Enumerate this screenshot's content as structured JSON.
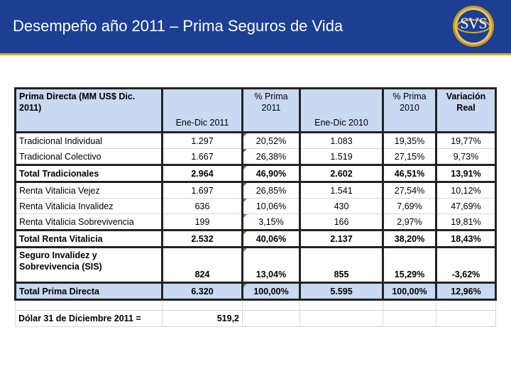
{
  "header": {
    "title": "Desempeño año 2011 – Prima Seguros de Vida",
    "logo_text": "SVS",
    "colors": {
      "header_bg": "#1c3f93",
      "accent_line": "#d8aa2a",
      "table_header_bg": "#c9d9f1"
    }
  },
  "table": {
    "headers": {
      "label": "Prima Directa (MM US$ Dic. 2011)",
      "c1": "Ene-Dic 2011",
      "c2": "% Prima 2011",
      "c3": "Ene-Dic 2010",
      "c4": "% Prima 2010",
      "c5": "Variación Real"
    },
    "rows": [
      {
        "label": "Tradicional Individual",
        "v1": "1.297",
        "v2": "20,52%",
        "v3": "1.083",
        "v4": "19,35%",
        "v5": "19,77%"
      },
      {
        "label": "Tradicional Colectivo",
        "v1": "1.667",
        "v2": "26,38%",
        "v3": "1.519",
        "v4": "27,15%",
        "v5": "9,73%"
      },
      {
        "label": "Total Tradicionales",
        "v1": "2.964",
        "v2": "46,90%",
        "v3": "2.602",
        "v4": "46,51%",
        "v5": "13,91%"
      },
      {
        "label": "Renta Vitalicia Vejez",
        "v1": "1.697",
        "v2": "26,85%",
        "v3": "1.541",
        "v4": "27,54%",
        "v5": "10,12%"
      },
      {
        "label": "Renta Vitalicia Invalidez",
        "v1": "636",
        "v2": "10,06%",
        "v3": "430",
        "v4": "7,69%",
        "v5": "47,69%"
      },
      {
        "label": "Renta Vitalicia Sobrevivencia",
        "v1": "199",
        "v2": "3,15%",
        "v3": "166",
        "v4": "2,97%",
        "v5": "19,81%"
      },
      {
        "label": "Total Renta Vitalicia",
        "v1": "2.532",
        "v2": "40,06%",
        "v3": "2.137",
        "v4": "38,20%",
        "v5": "18,43%"
      },
      {
        "label": "Seguro Invalidez y Sobrevivencia (SIS)",
        "v1": "824",
        "v2": "13,04%",
        "v3": "855",
        "v4": "15,29%",
        "v5": "-3,62%"
      },
      {
        "label": "Total Prima Directa",
        "v1": "6.320",
        "v2": "100,00%",
        "v3": "5.595",
        "v4": "100,00%",
        "v5": "12,96%"
      }
    ],
    "dolar": {
      "label": "Dólar 31 de Diciembre 2011 =",
      "value": "519,2"
    }
  }
}
